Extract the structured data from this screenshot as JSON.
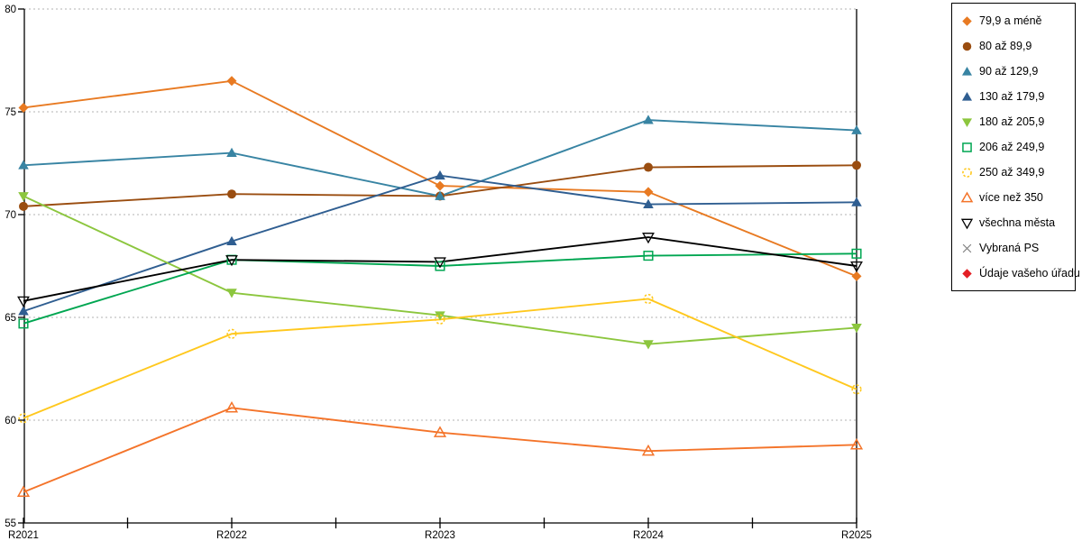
{
  "chart_data": {
    "type": "line",
    "title": "",
    "xlabel": "",
    "ylabel": "",
    "background_color": "#ffffff",
    "grid": "horizontal dotted",
    "grid_color": "#b3b3b3",
    "axis_color": "#000000",
    "legend_position": "right outside, boxed",
    "x_axis": {
      "tick_labels": [
        "R2021",
        "R2022",
        "R2023",
        "R2024",
        "R2025"
      ]
    },
    "y_axis": {
      "min": 55,
      "max": 80,
      "step": 5,
      "tick_labels": [
        "55",
        "60",
        "65",
        "70",
        "75",
        "80"
      ]
    },
    "categories": [
      "R2021",
      "R2022",
      "R2023",
      "R2024",
      "R2025"
    ],
    "series": [
      {
        "name": "79,9 a méně",
        "marker": "diamond-filled",
        "color": "#E87A22",
        "values": [
          75.2,
          76.5,
          71.4,
          71.1,
          67.0
        ]
      },
      {
        "name": "80 až 89,9",
        "marker": "circle-filled",
        "color": "#9A4D10",
        "values": [
          70.4,
          71.0,
          70.9,
          72.3,
          72.4
        ]
      },
      {
        "name": "90 až 129,9",
        "marker": "triangle-up-filled",
        "color": "#3884A3",
        "values": [
          72.4,
          73.0,
          70.9,
          74.6,
          74.1
        ]
      },
      {
        "name": "130 až 179,9",
        "marker": "triangle-up-filled",
        "color": "#2F5E91",
        "values": [
          65.3,
          68.7,
          71.9,
          70.5,
          70.6
        ]
      },
      {
        "name": "180 až 205,9",
        "marker": "triangle-down-filled",
        "color": "#8CC63E",
        "values": [
          70.9,
          66.2,
          65.1,
          63.7,
          64.5
        ]
      },
      {
        "name": "206 až 249,9",
        "marker": "square-open",
        "color": "#00A651",
        "values": [
          64.7,
          67.8,
          67.5,
          68.0,
          68.1
        ]
      },
      {
        "name": "250 až 349,9",
        "marker": "circle-open-dashed",
        "color": "#FFC81E",
        "values": [
          60.1,
          64.2,
          64.9,
          65.9,
          61.5
        ]
      },
      {
        "name": "více než 350",
        "marker": "triangle-up-open",
        "color": "#F4742A",
        "values": [
          56.5,
          60.6,
          59.4,
          58.5,
          58.8
        ]
      },
      {
        "name": "všechna města",
        "marker": "triangle-down-open",
        "color": "#000000",
        "values": [
          65.8,
          67.8,
          67.7,
          68.9,
          67.5
        ]
      },
      {
        "name": "Vybraná PS",
        "marker": "x-cross",
        "color": "#7F7F7F",
        "values": []
      },
      {
        "name": "Údaje vašeho úřadu",
        "marker": "diamond-filled",
        "color": "#E31E24",
        "values": []
      }
    ]
  }
}
